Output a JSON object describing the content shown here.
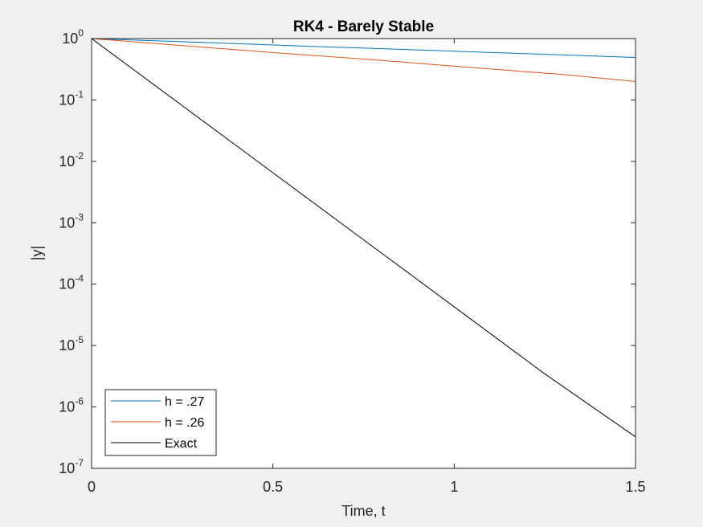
{
  "chart_data": {
    "type": "line",
    "title": "RK4 - Barely Stable",
    "xlabel": "Time, t",
    "ylabel": "|y|",
    "xlim": [
      0,
      1.5
    ],
    "ylim": [
      1e-07,
      1
    ],
    "yscale": "log",
    "xticks": [
      {
        "value": 0,
        "label": "0"
      },
      {
        "value": 0.5,
        "label": "0.5"
      },
      {
        "value": 1,
        "label": "1"
      },
      {
        "value": 1.5,
        "label": "1.5"
      }
    ],
    "yticks": [
      {
        "value": 1,
        "base": "10",
        "exp": "0"
      },
      {
        "value": 0.1,
        "base": "10",
        "exp": "-1"
      },
      {
        "value": 0.01,
        "base": "10",
        "exp": "-2"
      },
      {
        "value": 0.001,
        "base": "10",
        "exp": "-3"
      },
      {
        "value": 0.0001,
        "base": "10",
        "exp": "-4"
      },
      {
        "value": 1e-05,
        "base": "10",
        "exp": "-5"
      },
      {
        "value": 1e-06,
        "base": "10",
        "exp": "-6"
      },
      {
        "value": 1e-07,
        "base": "10",
        "exp": "-7"
      }
    ],
    "grid": false,
    "legend_position": "bottom-left",
    "series": [
      {
        "name": "h = .27",
        "color": "#0072BD",
        "x": [
          0,
          0.27,
          0.54,
          0.81,
          1.08,
          1.35,
          1.5
        ],
        "y": [
          1,
          0.88,
          0.77,
          0.68,
          0.6,
          0.53,
          0.49
        ]
      },
      {
        "name": "h = .26",
        "color": "#D95319",
        "x": [
          0,
          0.26,
          0.52,
          0.78,
          1.04,
          1.3,
          1.5
        ],
        "y": [
          1,
          0.76,
          0.58,
          0.45,
          0.34,
          0.26,
          0.2
        ]
      },
      {
        "name": "Exact",
        "color": "#000000",
        "x": [
          0,
          0.25,
          0.5,
          0.75,
          1.0,
          1.25,
          1.5
        ],
        "y": [
          1,
          0.0808,
          0.00653,
          0.000528,
          4.27e-05,
          3.45e-06,
          3.26e-07
        ]
      }
    ]
  }
}
